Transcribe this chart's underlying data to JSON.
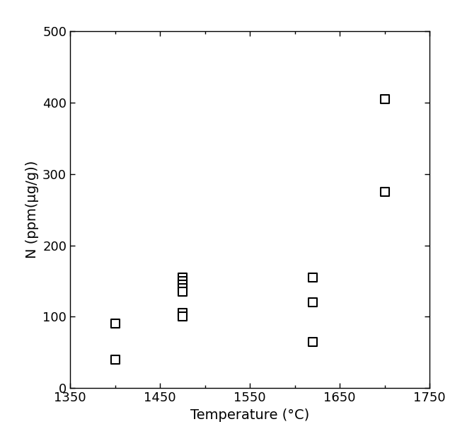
{
  "x_data": [
    1400,
    1400,
    1475,
    1475,
    1475,
    1475,
    1475,
    1475,
    1475,
    1620,
    1620,
    1620,
    1700,
    1700
  ],
  "y_data": [
    90,
    40,
    155,
    150,
    145,
    140,
    135,
    105,
    100,
    155,
    120,
    65,
    405,
    275
  ],
  "xlabel": "Temperature (°C)",
  "ylabel": "N (ppm(μg/g))",
  "xlim": [
    1350,
    1750
  ],
  "ylim": [
    0,
    500
  ],
  "xticks": [
    1350,
    1450,
    1550,
    1650,
    1750
  ],
  "yticks": [
    0,
    100,
    200,
    300,
    400,
    500
  ],
  "marker": "s",
  "marker_size": 8,
  "marker_facecolor": "white",
  "marker_edgecolor": "black",
  "marker_linewidth": 1.5,
  "axis_linewidth": 1.0,
  "xlabel_fontsize": 14,
  "ylabel_fontsize": 14,
  "tick_fontsize": 13,
  "background_color": "#ffffff",
  "figure_background_color": "#ffffff"
}
